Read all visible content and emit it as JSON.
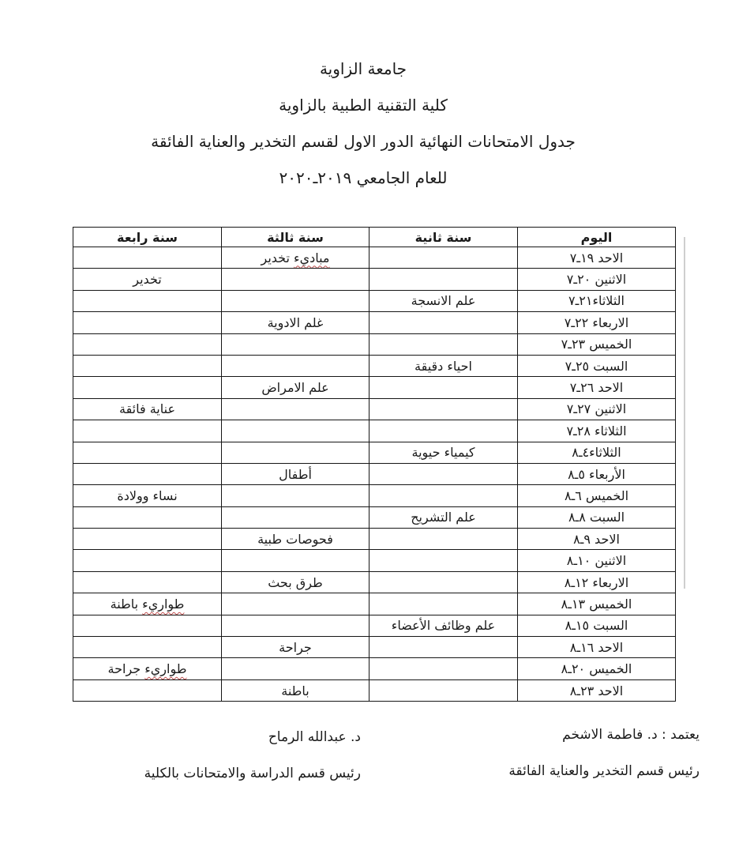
{
  "header": {
    "line1": "جامعة الزاوية",
    "line2": "كلية التقنية الطبية بالزاوية",
    "line3": "جدول الامتحانات النهائية الدور الاول لقسم التخدير والعناية الفائقة",
    "line4": "للعام الجامعي ٢٠١٩ـ٢٠٢٠"
  },
  "table": {
    "columns": [
      "اليوم",
      "سنة ثانية",
      "سنة ثالثة",
      "سنة رابعة"
    ],
    "rows": [
      {
        "day": "الاحد ١٩ـ٧",
        "year3": {
          "text": "مباديء تخدير",
          "squiggle": "مباديء"
        }
      },
      {
        "day": "الاثنين ٢٠ـ٧",
        "year4": {
          "text": "تخدير"
        }
      },
      {
        "day": "الثلاثاء٢١ـ٧",
        "year2": {
          "text": "علم الانسجة",
          "align": "right"
        }
      },
      {
        "day": "الاربعاء ٢٢ـ٧",
        "year3": {
          "text": "غلم الادوية"
        }
      },
      {
        "day": "الخميس ٢٣ـ٧"
      },
      {
        "day": "السبت ٢٥ـ٧",
        "year2": {
          "text": "احياء دقيقة",
          "bold": true,
          "align": "right"
        }
      },
      {
        "day": "الاحد ٢٦ـ٧",
        "year3": {
          "text": "علم الامراض"
        }
      },
      {
        "day": "الاثنين ٢٧ـ٧",
        "year4": {
          "text": "عناية فائقة"
        }
      },
      {
        "day": "الثلاثاء ٢٨ـ٧"
      },
      {
        "day": "الثلاثاء٤ـ٨",
        "year2": {
          "text": "كيمياء حيوية",
          "bold": true,
          "align": "right"
        }
      },
      {
        "day": "الأربعاء ٥ـ٨",
        "year3": {
          "text": "أطفال"
        }
      },
      {
        "day": "الخميس ٦ـ٨",
        "year4": {
          "text": "نساء وولادة"
        }
      },
      {
        "day": "السبت ٨ـ٨",
        "year2": {
          "text": "علم التشريح",
          "bold": true,
          "align": "right"
        }
      },
      {
        "day": "الاحد ٩ـ٨",
        "year3": {
          "text": "فحوصات طبية"
        }
      },
      {
        "day": "الاثنين ١٠ـ٨"
      },
      {
        "day": "الاربعاء ١٢ـ٨",
        "year3": {
          "text": "طرق بحث"
        }
      },
      {
        "day": "الخميس ١٣ـ٨",
        "year4": {
          "text": "طواريء باطنة",
          "squiggle": "طواريء"
        }
      },
      {
        "day": "السبت ١٥ـ٨",
        "year2": {
          "text": "علم وظائف الأعضاء"
        }
      },
      {
        "day": "الاحد ١٦ـ٨",
        "year3": {
          "text": "جراحة"
        }
      },
      {
        "day": "الخميس ٢٠ـ٨",
        "year4": {
          "text": "طواريء جراحة",
          "squiggle": "طواريء"
        }
      },
      {
        "day": "الاحد ٢٣ـ٨",
        "year3": {
          "text": "باطنة"
        }
      }
    ]
  },
  "footer": {
    "right": {
      "line1": "يعتمد : د. فاطمة الاشخم",
      "line2": "رئيس قسم التخدير والعناية الفائقة"
    },
    "left": {
      "line1": "د. عبدالله الرماح",
      "line2": "رئيس قسم الدراسة والامتحانات بالكلية"
    }
  },
  "colors": {
    "text": "#1b1b1b",
    "table_border": "#161616",
    "squiggle": "#bf4e4e",
    "scan_artifact": "#cfcfcf",
    "background": "#ffffff"
  }
}
